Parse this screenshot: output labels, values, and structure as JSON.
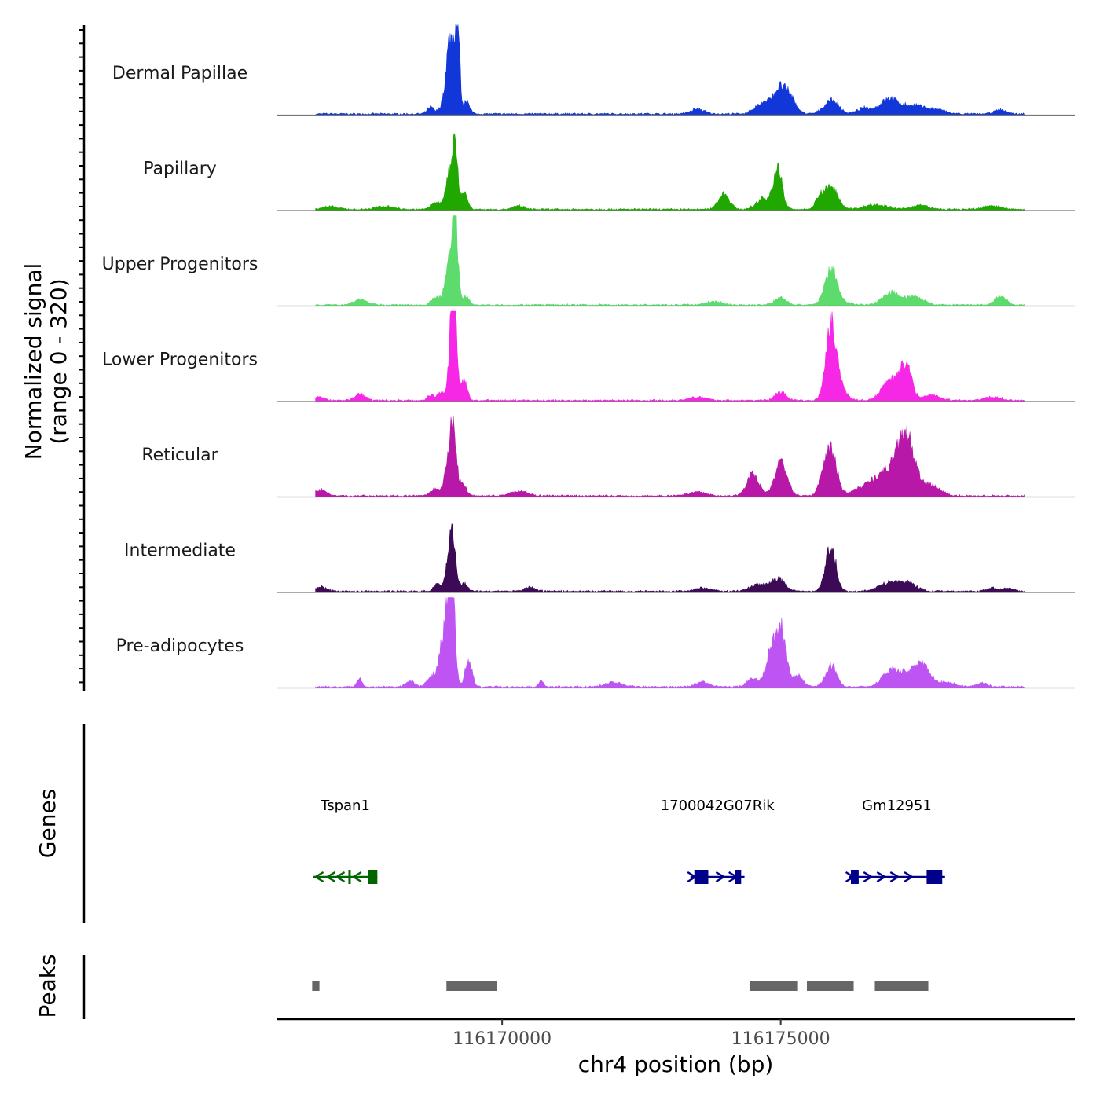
{
  "chart_data": {
    "type": "area",
    "title": "",
    "ylabel": "Normalized signal",
    "ylabel_range": "(range 0 - 320)",
    "ylim": [
      0,
      320
    ],
    "xlabel": "chr4 position (bp)",
    "xlim": [
      116165950,
      116180280
    ],
    "x_ticks": [
      116170000,
      116175000
    ],
    "x_tick_labels": [
      "116170000",
      "116175000"
    ],
    "signal_range": [
      116166650,
      116179370
    ],
    "base_level": 4,
    "series": [
      {
        "name": "Dermal Papillae",
        "color": "#1237D9",
        "peaks": [
          [
            116169100,
            230,
            60
          ],
          [
            116169200,
            300,
            40
          ],
          [
            116169020,
            120,
            50
          ],
          [
            116169370,
            50,
            50
          ],
          [
            116168930,
            30,
            60
          ],
          [
            116168720,
            25,
            60
          ],
          [
            116174700,
            40,
            150
          ],
          [
            116175000,
            90,
            120
          ],
          [
            116175200,
            40,
            100
          ],
          [
            116175910,
            50,
            130
          ],
          [
            116176950,
            55,
            170
          ],
          [
            116177400,
            30,
            180
          ],
          [
            116176500,
            20,
            120
          ],
          [
            116177800,
            15,
            150
          ],
          [
            116173500,
            18,
            120
          ],
          [
            116178950,
            15,
            100
          ]
        ]
      },
      {
        "name": "Papillary",
        "color": "#21A800",
        "peaks": [
          [
            116169150,
            250,
            50
          ],
          [
            116169030,
            110,
            60
          ],
          [
            116169320,
            60,
            60
          ],
          [
            116168800,
            25,
            80
          ],
          [
            116173980,
            55,
            100
          ],
          [
            116174950,
            140,
            80
          ],
          [
            116174700,
            40,
            130
          ],
          [
            116175700,
            40,
            80
          ],
          [
            116175910,
            80,
            120
          ],
          [
            116166900,
            10,
            150
          ],
          [
            116167900,
            12,
            150
          ],
          [
            116176700,
            18,
            200
          ],
          [
            116177500,
            15,
            150
          ],
          [
            116178800,
            14,
            150
          ],
          [
            116170300,
            12,
            100
          ]
        ]
      },
      {
        "name": "Upper Progenitors",
        "color": "#5DDB6C",
        "peaks": [
          [
            116169150,
            340,
            50
          ],
          [
            116169030,
            130,
            60
          ],
          [
            116169350,
            30,
            60
          ],
          [
            116168820,
            28,
            80
          ],
          [
            116167450,
            20,
            120
          ],
          [
            116175900,
            120,
            100
          ],
          [
            116175000,
            28,
            100
          ],
          [
            116176980,
            45,
            150
          ],
          [
            116177400,
            30,
            160
          ],
          [
            116178950,
            30,
            100
          ],
          [
            116176000,
            15,
            200
          ],
          [
            116173800,
            12,
            150
          ]
        ]
      },
      {
        "name": "Lower Progenitors",
        "color": "#F727E6",
        "peaks": [
          [
            116169120,
            440,
            55
          ],
          [
            116169320,
            70,
            55
          ],
          [
            116168910,
            30,
            60
          ],
          [
            116168720,
            20,
            60
          ],
          [
            116167450,
            22,
            100
          ],
          [
            116175900,
            220,
            90
          ],
          [
            116176000,
            70,
            130
          ],
          [
            116176980,
            80,
            150
          ],
          [
            116177250,
            120,
            100
          ],
          [
            116177700,
            20,
            150
          ],
          [
            116175000,
            30,
            100
          ],
          [
            116178800,
            12,
            150
          ],
          [
            116166700,
            12,
            100
          ],
          [
            116173500,
            12,
            150
          ]
        ]
      },
      {
        "name": "Reticular",
        "color": "#B718A8",
        "peaks": [
          [
            116169120,
            240,
            60
          ],
          [
            116169020,
            90,
            60
          ],
          [
            116169300,
            40,
            60
          ],
          [
            116168800,
            25,
            80
          ],
          [
            116166750,
            22,
            100
          ],
          [
            116170300,
            18,
            150
          ],
          [
            116174500,
            80,
            110
          ],
          [
            116175000,
            120,
            110
          ],
          [
            116175750,
            50,
            80
          ],
          [
            116175910,
            160,
            100
          ],
          [
            116177250,
            210,
            150
          ],
          [
            116176900,
            80,
            200
          ],
          [
            116176500,
            30,
            200
          ],
          [
            116177700,
            40,
            150
          ],
          [
            116173500,
            15,
            150
          ]
        ]
      },
      {
        "name": "Intermediate",
        "color": "#3D0A55",
        "peaks": [
          [
            116169110,
            200,
            60
          ],
          [
            116169020,
            60,
            60
          ],
          [
            116168830,
            25,
            60
          ],
          [
            116169320,
            28,
            60
          ],
          [
            116166750,
            15,
            100
          ],
          [
            116170500,
            15,
            100
          ],
          [
            116174950,
            45,
            120
          ],
          [
            116174600,
            25,
            150
          ],
          [
            116175900,
            170,
            90
          ],
          [
            116176950,
            32,
            180
          ],
          [
            116177300,
            28,
            150
          ],
          [
            116178800,
            12,
            100
          ],
          [
            116179100,
            14,
            80
          ],
          [
            116173600,
            12,
            150
          ]
        ]
      },
      {
        "name": "Pre-adipocytes",
        "color": "#BE55F2",
        "peaks": [
          [
            116169100,
            340,
            55
          ],
          [
            116169020,
            240,
            60
          ],
          [
            116168900,
            110,
            60
          ],
          [
            116168730,
            40,
            80
          ],
          [
            116168350,
            20,
            80
          ],
          [
            116169400,
            100,
            60
          ],
          [
            116167440,
            35,
            40
          ],
          [
            116170700,
            25,
            40
          ],
          [
            116174850,
            140,
            100
          ],
          [
            116175020,
            180,
            80
          ],
          [
            116174500,
            30,
            100
          ],
          [
            116175300,
            40,
            100
          ],
          [
            116175910,
            75,
            100
          ],
          [
            116176980,
            60,
            150
          ],
          [
            116177400,
            65,
            180
          ],
          [
            116177600,
            40,
            120
          ],
          [
            116178000,
            15,
            150
          ],
          [
            116172000,
            15,
            150
          ],
          [
            116173600,
            18,
            120
          ],
          [
            116178600,
            14,
            100
          ]
        ]
      }
    ],
    "genes_label": "Genes",
    "genes": [
      {
        "name": "Tspan1",
        "strand": "-",
        "color": "#006400",
        "start": 116166610,
        "end": 116167760,
        "exons": [
          [
            116167240,
            116167260
          ],
          [
            116167600,
            116167760
          ]
        ],
        "chevrons": [
          116166720,
          116166930,
          116167100,
          116167400
        ]
      },
      {
        "name": "1700042G07Rik",
        "strand": "+",
        "color": "#00008B",
        "start": 116173380,
        "end": 116174350,
        "exons": [
          [
            116173450,
            116173700
          ],
          [
            116174180,
            116174290
          ]
        ],
        "chevrons": [
          116173400,
          116173910,
          116174140
        ]
      },
      {
        "name": "Gm12951",
        "strand": "+",
        "color": "#00008B",
        "start": 116176220,
        "end": 116177950,
        "exons": [
          [
            116176260,
            116176400
          ],
          [
            116177620,
            116177900
          ]
        ],
        "chevrons": [
          116176240,
          116176560,
          116176800,
          116177040,
          116177290
        ]
      }
    ],
    "peaks_label": "Peaks",
    "peak_regions": [
      [
        116166590,
        116166720
      ],
      [
        116169000,
        116169900
      ],
      [
        116174440,
        116175310
      ],
      [
        116175470,
        116176310
      ],
      [
        116176690,
        116177650
      ]
    ]
  }
}
